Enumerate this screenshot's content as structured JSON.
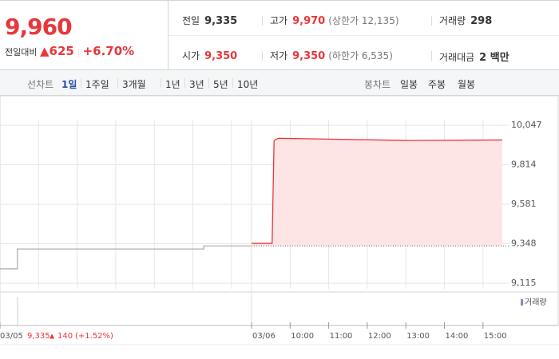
{
  "header": {
    "price": "9,960",
    "change_label": "전일대비",
    "change": "625",
    "rate": "+6.70%"
  },
  "info": [
    [
      {
        "label": "전일",
        "value": "9,335"
      },
      {
        "label": "고가",
        "value": "9,970",
        "note": "(상한가 12,135)"
      },
      {
        "label": "거래량",
        "value": "298"
      }
    ],
    [
      {
        "label": "시가",
        "value": "9,350"
      },
      {
        "label": "저가",
        "value": "9,350",
        "note": "(하한가 6,535)"
      },
      {
        "label": "거래대금",
        "value": "2 백만"
      }
    ]
  ],
  "tabs": {
    "line_label": "선차트",
    "line_tabs": [
      "1일",
      "1주일",
      "3개월",
      "1년",
      "3년",
      "5년",
      "10년"
    ],
    "line_active": 0,
    "candle_label": "봉차트",
    "candle_tabs": [
      "일봉",
      "주봉",
      "월봉"
    ]
  },
  "chart_data": {
    "type": "line",
    "ylim": [
      9068,
      10221
    ],
    "yticks": [
      {
        "value": 10047,
        "label": "10,047"
      },
      {
        "value": 9814,
        "label": "9,814"
      },
      {
        "value": 9581,
        "label": "9,581"
      },
      {
        "value": 9348,
        "label": "9,348"
      },
      {
        "value": 9115,
        "label": "9,115"
      }
    ],
    "xticks": [
      "03/05",
      "03/06",
      "10:00",
      "11:00",
      "12:00",
      "13:00",
      "14:00",
      "15:00"
    ],
    "baseline": 9335,
    "series": [
      {
        "color": "#b0b0b0",
        "x": [
          "03/05 09:00",
          "03/05 09:27",
          "03/05 09:27",
          "03/05 14:17",
          "03/05 14:17",
          "03/05 15:30"
        ],
        "values": [
          9200,
          9200,
          9317,
          9317,
          9335,
          9335
        ]
      },
      {
        "color": "#e8373c",
        "fill": "#fde4e5",
        "x": [
          "03/06 09:00",
          "03/06 09:32",
          "03/06 09:35",
          "03/06 09:37",
          "03/06 09:42",
          "03/06 13:04",
          "03/06 15:30"
        ],
        "values": [
          9350,
          9350,
          9953,
          9962,
          9970,
          9957,
          9960
        ]
      }
    ],
    "volume_legend": "거래량",
    "hover_info": {
      "date": "03/05",
      "price": "9,335",
      "change": "140",
      "rate": "(+1.52%)"
    }
  }
}
